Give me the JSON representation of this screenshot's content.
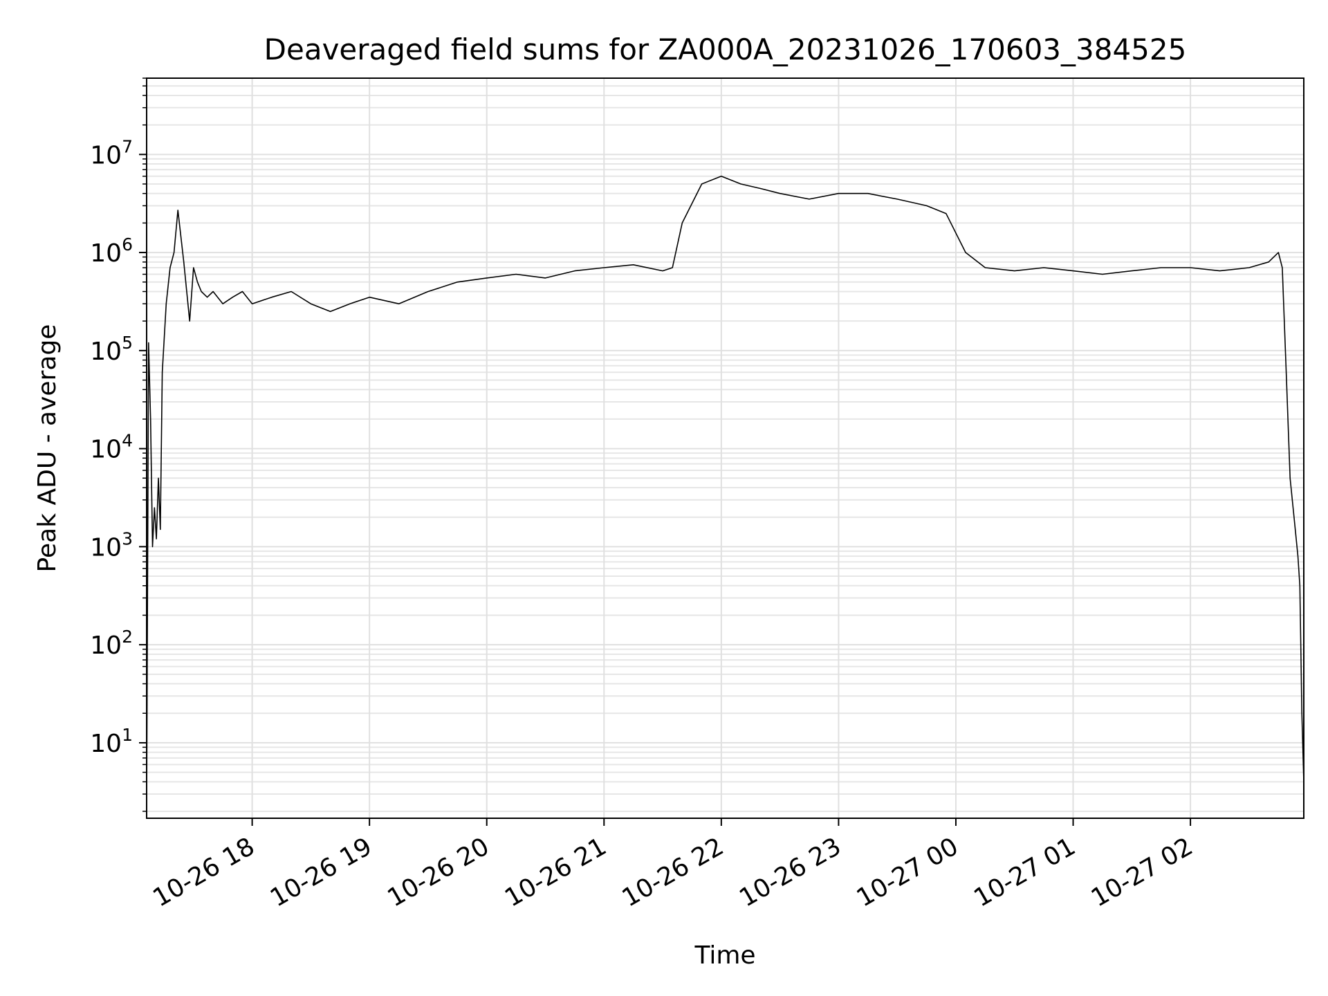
{
  "chart_data": {
    "type": "line",
    "title": "Deaveraged field sums for ZA000A_20231026_170603_384525",
    "xlabel": "Time",
    "ylabel": "Peak ADU - average",
    "yscale": "log",
    "grid": true,
    "grid_minor": true,
    "line_color": "#000000",
    "xlim": [
      "2023-10-26 17:06",
      "2023-10-27 02:58"
    ],
    "ylim": [
      1.7,
      60000000
    ],
    "x_ticks": [
      {
        "label": "10-26 18",
        "value": "2023-10-26 18:00"
      },
      {
        "label": "10-26 19",
        "value": "2023-10-26 19:00"
      },
      {
        "label": "10-26 20",
        "value": "2023-10-26 20:00"
      },
      {
        "label": "10-26 21",
        "value": "2023-10-26 21:00"
      },
      {
        "label": "10-26 22",
        "value": "2023-10-26 22:00"
      },
      {
        "label": "10-26 23",
        "value": "2023-10-26 23:00"
      },
      {
        "label": "10-27 00",
        "value": "2023-10-27 00:00"
      },
      {
        "label": "10-27 01",
        "value": "2023-10-27 01:00"
      },
      {
        "label": "10-27 02",
        "value": "2023-10-27 02:00"
      }
    ],
    "y_ticks": [
      {
        "base": "10",
        "exp": "1",
        "value": 10
      },
      {
        "base": "10",
        "exp": "2",
        "value": 100
      },
      {
        "base": "10",
        "exp": "3",
        "value": 1000
      },
      {
        "base": "10",
        "exp": "4",
        "value": 10000
      },
      {
        "base": "10",
        "exp": "5",
        "value": 100000
      },
      {
        "base": "10",
        "exp": "6",
        "value": 1000000
      },
      {
        "base": "10",
        "exp": "7",
        "value": 10000000
      }
    ],
    "series": [
      {
        "x": [
          "2023-10-26 17:06",
          "2023-10-26 17:07",
          "2023-10-26 17:08",
          "2023-10-26 17:09",
          "2023-10-26 17:10",
          "2023-10-26 17:11",
          "2023-10-26 17:12",
          "2023-10-26 17:13",
          "2023-10-26 17:14",
          "2023-10-26 17:16",
          "2023-10-26 17:18",
          "2023-10-26 17:20",
          "2023-10-26 17:22",
          "2023-10-26 17:25",
          "2023-10-26 17:28",
          "2023-10-26 17:30",
          "2023-10-26 17:32",
          "2023-10-26 17:34",
          "2023-10-26 17:37",
          "2023-10-26 17:40",
          "2023-10-26 17:45",
          "2023-10-26 17:50",
          "2023-10-26 17:55",
          "2023-10-26 18:00",
          "2023-10-26 18:10",
          "2023-10-26 18:20",
          "2023-10-26 18:30",
          "2023-10-26 18:40",
          "2023-10-26 18:50",
          "2023-10-26 19:00",
          "2023-10-26 19:15",
          "2023-10-26 19:30",
          "2023-10-26 19:45",
          "2023-10-26 20:00",
          "2023-10-26 20:15",
          "2023-10-26 20:30",
          "2023-10-26 20:45",
          "2023-10-26 21:00",
          "2023-10-26 21:15",
          "2023-10-26 21:30",
          "2023-10-26 21:35",
          "2023-10-26 21:40",
          "2023-10-26 21:50",
          "2023-10-26 22:00",
          "2023-10-26 22:10",
          "2023-10-26 22:20",
          "2023-10-26 22:30",
          "2023-10-26 22:45",
          "2023-10-26 23:00",
          "2023-10-26 23:15",
          "2023-10-26 23:30",
          "2023-10-26 23:45",
          "2023-10-26 23:55",
          "2023-10-27 00:05",
          "2023-10-27 00:15",
          "2023-10-27 00:30",
          "2023-10-27 00:45",
          "2023-10-27 01:00",
          "2023-10-27 01:15",
          "2023-10-27 01:30",
          "2023-10-27 01:45",
          "2023-10-27 02:00",
          "2023-10-27 02:15",
          "2023-10-27 02:30",
          "2023-10-27 02:40",
          "2023-10-27 02:45",
          "2023-10-27 02:47",
          "2023-10-27 02:49",
          "2023-10-27 02:51",
          "2023-10-27 02:53",
          "2023-10-27 02:55",
          "2023-10-27 02:56",
          "2023-10-27 02:57",
          "2023-10-27 02:58"
        ],
        "y": [
          2,
          120000,
          20000,
          1000,
          2500,
          1200,
          5000,
          1500,
          60000,
          300000,
          700000,
          1000000,
          2700000,
          800000,
          200000,
          700000,
          500000,
          400000,
          350000,
          400000,
          300000,
          350000,
          400000,
          300000,
          350000,
          400000,
          300000,
          250000,
          300000,
          350000,
          300000,
          400000,
          500000,
          550000,
          600000,
          550000,
          650000,
          700000,
          750000,
          650000,
          700000,
          2000000,
          5000000,
          6000000,
          5000000,
          4500000,
          4000000,
          3500000,
          4000000,
          4000000,
          3500000,
          3000000,
          2500000,
          1000000,
          700000,
          650000,
          700000,
          650000,
          600000,
          650000,
          700000,
          700000,
          650000,
          700000,
          800000,
          1000000,
          700000,
          60000,
          5000,
          2000,
          800,
          400,
          20,
          4
        ]
      }
    ]
  }
}
